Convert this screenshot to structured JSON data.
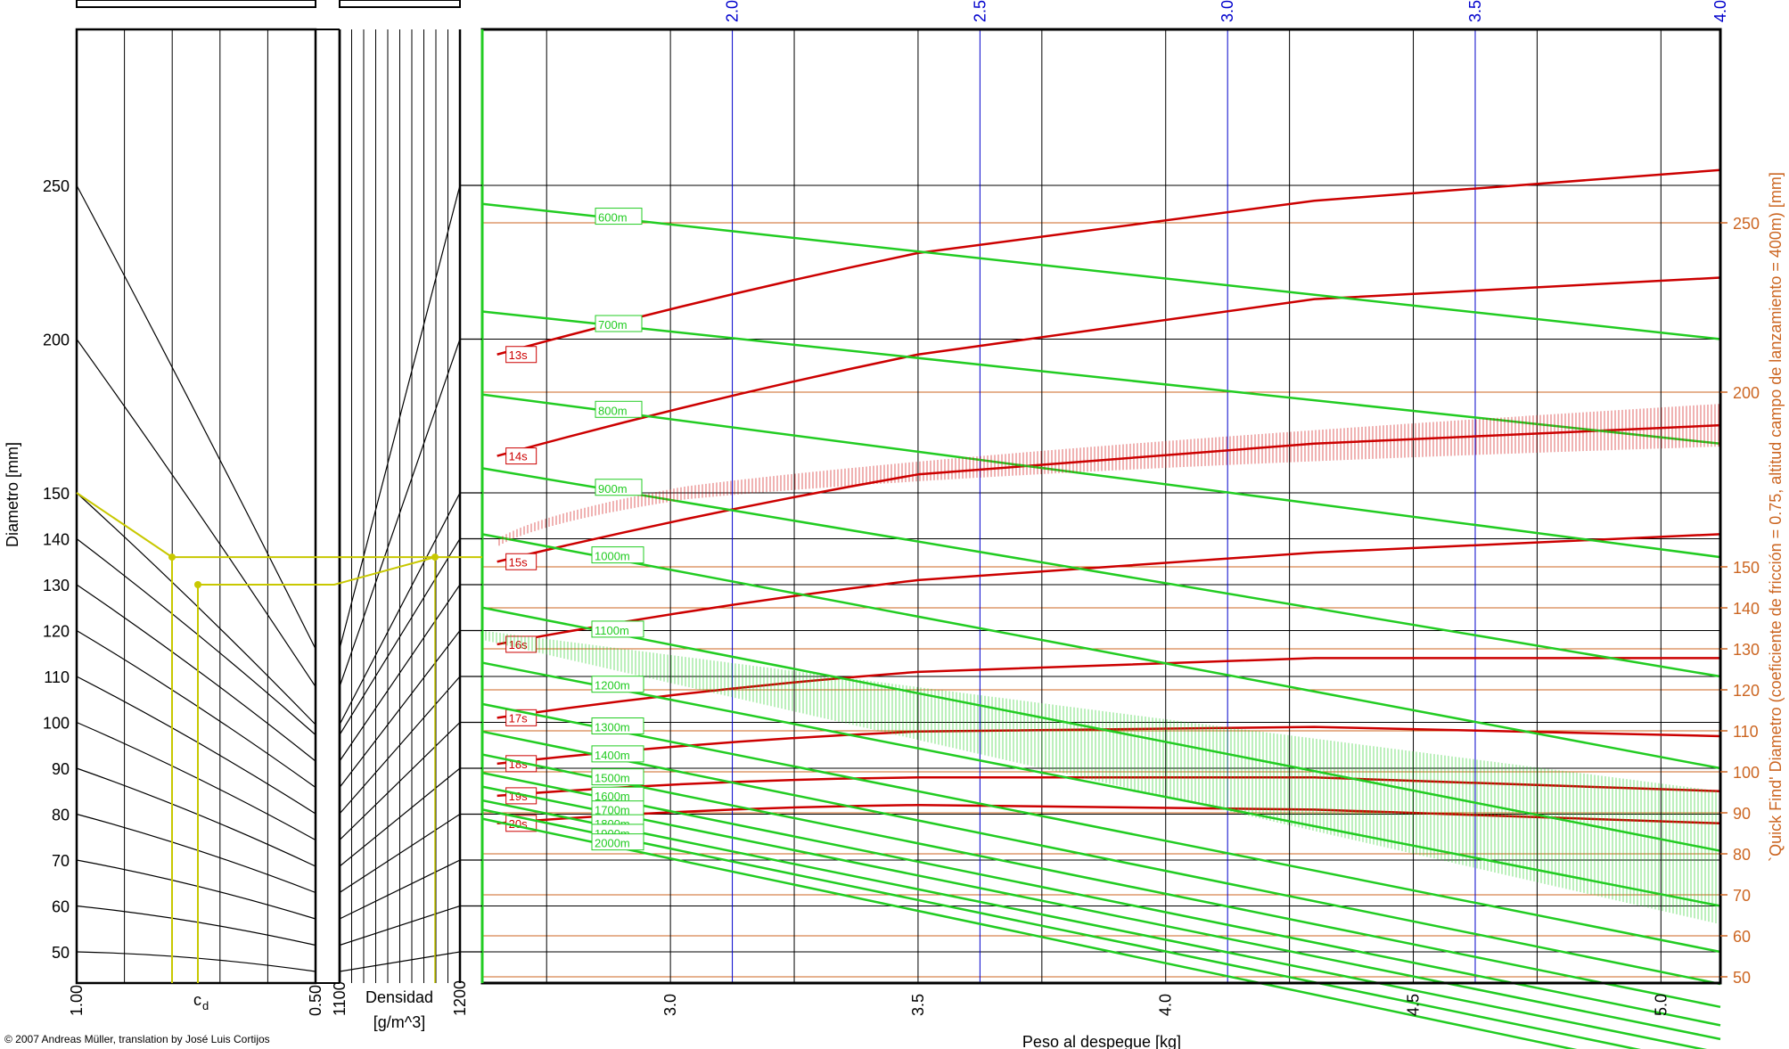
{
  "credit": "© 2007 Andreas Müller, translation by José Luis Cortijos",
  "colors": {
    "green": "#22cc22",
    "red": "#cc0000",
    "blue": "#0000cc",
    "yellow": "#c8c800",
    "orange": "#cc6622",
    "black": "#000000"
  },
  "chart_data": {
    "type": "line",
    "title": "",
    "xlabel": "Peso al despegue [kg]",
    "ylabel": "Diametro [mm]",
    "ylabel_right": "`Quick Find' Diametro (coeficiente de fricción = 0.75, altitud campo de lanzamiento = 400m) [mm]",
    "x_ticks_bottom": [
      3.0,
      3.5,
      4.0,
      4.5,
      5.0
    ],
    "x_ticks_top": [
      2.0,
      2.5,
      3.0,
      3.5,
      4.0
    ],
    "xlim": [
      2.62,
      5.12
    ],
    "y_ticks_left": [
      50,
      60,
      70,
      80,
      90,
      100,
      110,
      120,
      130,
      140,
      150,
      200,
      250
    ],
    "y_ticks_right": [
      50,
      60,
      70,
      80,
      90,
      100,
      110,
      120,
      130,
      140,
      150,
      200,
      250
    ],
    "cd_panel": {
      "left_label": "1.00",
      "mid_label": "c",
      "mid_sub": "d",
      "right_label": "0.50"
    },
    "density_panel": {
      "label_line1": "Densidad",
      "label_line2": "[g/m^3]",
      "left_label": "1100",
      "right_label": "1200"
    },
    "series_altitude": [
      {
        "name": "600m",
        "y": [
          244,
          200
        ]
      },
      {
        "name": "700m",
        "y": [
          209,
          166
        ]
      },
      {
        "name": "800m",
        "y": [
          182,
          136
        ]
      },
      {
        "name": "900m",
        "y": [
          158,
          110
        ]
      },
      {
        "name": "1000m",
        "y": [
          141,
          90
        ]
      },
      {
        "name": "1100m",
        "y": [
          125,
          72
        ]
      },
      {
        "name": "1200m",
        "y": [
          113,
          60
        ]
      },
      {
        "name": "1300m",
        "y": [
          104,
          50
        ]
      },
      {
        "name": "1400m",
        "y": [
          98,
          43
        ]
      },
      {
        "name": "1500m",
        "y": [
          93,
          38
        ]
      },
      {
        "name": "1600m",
        "y": [
          89,
          34
        ]
      },
      {
        "name": "1700m",
        "y": [
          86,
          31
        ]
      },
      {
        "name": "1800m",
        "y": [
          83,
          28
        ]
      },
      {
        "name": "1900m",
        "y": [
          81,
          25
        ]
      },
      {
        "name": "2000m",
        "y": [
          79,
          22
        ]
      }
    ],
    "series_time": [
      {
        "name": "13s",
        "y": [
          195,
          228,
          245,
          255
        ]
      },
      {
        "name": "14s",
        "y": [
          162,
          195,
          213,
          220
        ]
      },
      {
        "name": "15s",
        "y": [
          135,
          156,
          166,
          172
        ]
      },
      {
        "name": "16s",
        "y": [
          117,
          131,
          137,
          141
        ]
      },
      {
        "name": "17s",
        "y": [
          101,
          111,
          114,
          114
        ]
      },
      {
        "name": "18s",
        "y": [
          91,
          98,
          99,
          97
        ]
      },
      {
        "name": "19s",
        "y": [
          84,
          88,
          88,
          85
        ]
      },
      {
        "name": "20s",
        "y": [
          78,
          82,
          81,
          78
        ]
      }
    ],
    "time_label_x": [
      2.65,
      2.65,
      2.65,
      2.65,
      2.65,
      2.65,
      2.65,
      2.65
    ],
    "altitude_label_x": [
      2.9,
      2.9,
      2.9,
      2.9,
      2.85,
      2.85,
      2.85,
      2.85,
      2.85,
      2.85,
      2.85,
      2.85,
      2.85,
      2.85,
      2.85
    ]
  }
}
